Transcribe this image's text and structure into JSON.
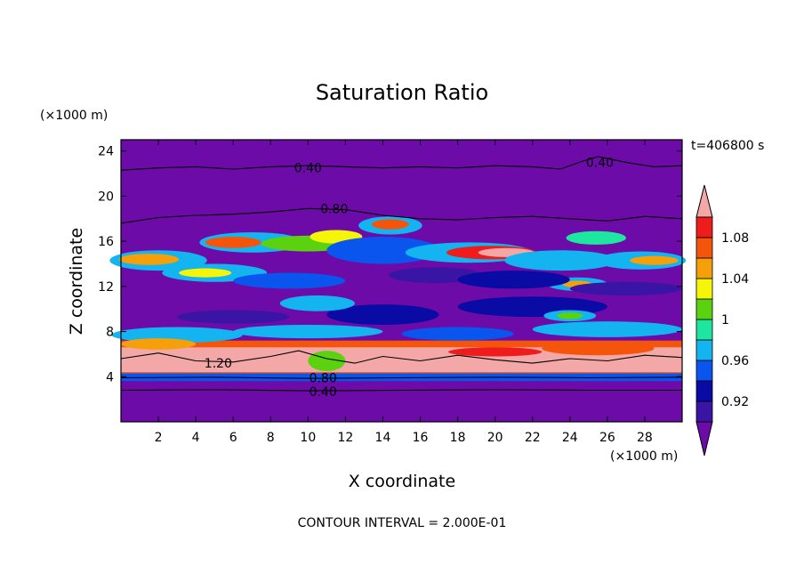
{
  "chart_data": {
    "type": "heatmap",
    "title": "Saturation Ratio",
    "xlabel": "X coordinate",
    "ylabel": "Z coordinate",
    "x_unit": "(×1000 m)",
    "y_unit": "(×1000 m)",
    "time_label": "t=406800 s",
    "footer": "CONTOUR INTERVAL = 2.000E-01",
    "xlim": [
      0,
      30
    ],
    "ylim": [
      0,
      25
    ],
    "x_ticks": [
      2,
      4,
      6,
      8,
      10,
      12,
      14,
      16,
      18,
      20,
      22,
      24,
      26,
      28
    ],
    "y_ticks": [
      4,
      8,
      12,
      16,
      20,
      24
    ],
    "colorbar": {
      "levels": [
        0.9,
        0.92,
        0.94,
        0.96,
        0.98,
        1.0,
        1.02,
        1.04,
        1.06,
        1.08,
        1.1
      ],
      "tick_labels": [
        "0.92",
        "0.96",
        "1",
        "1.04",
        "1.08"
      ],
      "tick_values": [
        0.92,
        0.96,
        1.0,
        1.04,
        1.08
      ],
      "colors": [
        "#6c0ba8",
        "#3a15a5",
        "#0a0aa5",
        "#0a55ee",
        "#14b4f0",
        "#1ee6a0",
        "#5ad20f",
        "#f5f50a",
        "#f5a00a",
        "#f5550a",
        "#ee1c1c",
        "#f4a7a7"
      ],
      "extend": "both"
    },
    "contour_labels": [
      {
        "text": "0.40",
        "x": 10.0,
        "y": 22.5
      },
      {
        "text": "0.40",
        "x": 25.6,
        "y": 23.0
      },
      {
        "text": "0.80",
        "x": 11.4,
        "y": 18.9
      },
      {
        "text": "1.20",
        "x": 5.2,
        "y": 5.2
      },
      {
        "text": "0.80",
        "x": 10.8,
        "y": 3.9
      },
      {
        "text": "0.40",
        "x": 10.8,
        "y": 2.7
      }
    ],
    "contour_lines": [
      {
        "level": 0.4,
        "points": [
          [
            0,
            22.3
          ],
          [
            2,
            22.5
          ],
          [
            4,
            22.6
          ],
          [
            6,
            22.4
          ],
          [
            8,
            22.6
          ],
          [
            10,
            22.7
          ],
          [
            12,
            22.6
          ],
          [
            14,
            22.5
          ],
          [
            16,
            22.6
          ],
          [
            18,
            22.5
          ],
          [
            20,
            22.7
          ],
          [
            22,
            22.6
          ],
          [
            23.5,
            22.4
          ],
          [
            24.5,
            23.0
          ],
          [
            25.5,
            23.5
          ],
          [
            27,
            23.0
          ],
          [
            28.5,
            22.6
          ],
          [
            30,
            22.7
          ]
        ]
      },
      {
        "level": 0.8,
        "points": [
          [
            0,
            17.6
          ],
          [
            2,
            18.1
          ],
          [
            4,
            18.3
          ],
          [
            6,
            18.4
          ],
          [
            8,
            18.6
          ],
          [
            10,
            18.9
          ],
          [
            12,
            18.8
          ],
          [
            14,
            18.3
          ],
          [
            16,
            18.0
          ],
          [
            18,
            17.9
          ],
          [
            20,
            18.1
          ],
          [
            22,
            18.2
          ],
          [
            24,
            18.0
          ],
          [
            26,
            17.8
          ],
          [
            28,
            18.2
          ],
          [
            30,
            18.0
          ]
        ]
      },
      {
        "level": 0.8,
        "points": [
          [
            0,
            3.9
          ],
          [
            5,
            3.95
          ],
          [
            10,
            3.85
          ],
          [
            15,
            3.9
          ],
          [
            20,
            3.95
          ],
          [
            25,
            3.9
          ],
          [
            30,
            3.95
          ]
        ]
      },
      {
        "level": 0.4,
        "points": [
          [
            0,
            2.8
          ],
          [
            5,
            2.85
          ],
          [
            10,
            2.75
          ],
          [
            15,
            2.8
          ],
          [
            20,
            2.85
          ],
          [
            25,
            2.8
          ],
          [
            30,
            2.8
          ]
        ]
      },
      {
        "level": 1.2,
        "points": [
          [
            0,
            5.6
          ],
          [
            2,
            6.1
          ],
          [
            4,
            5.4
          ],
          [
            6,
            5.3
          ],
          [
            8,
            5.8
          ],
          [
            9.5,
            6.3
          ],
          [
            11,
            5.6
          ],
          [
            12.5,
            5.2
          ],
          [
            14,
            5.8
          ],
          [
            16,
            5.4
          ],
          [
            18,
            5.9
          ],
          [
            20,
            5.5
          ],
          [
            22,
            5.2
          ],
          [
            24,
            5.6
          ],
          [
            26,
            5.4
          ],
          [
            28,
            5.9
          ],
          [
            30,
            5.7
          ]
        ]
      }
    ]
  }
}
